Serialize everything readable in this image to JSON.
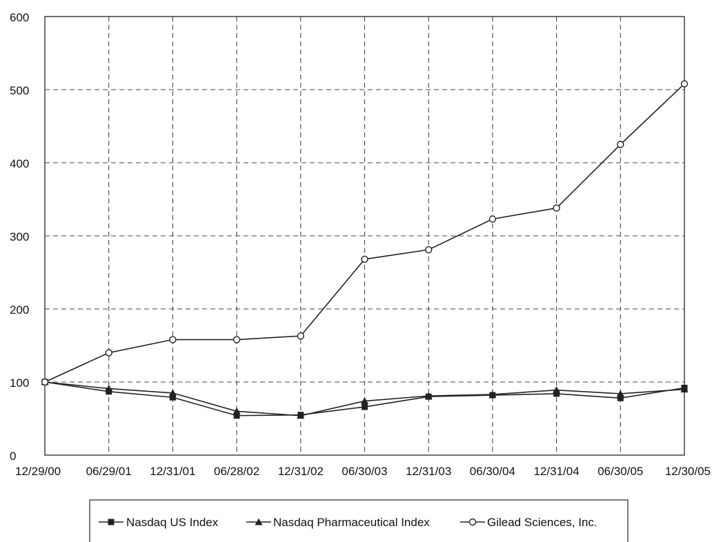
{
  "chart_data": {
    "type": "line",
    "categories": [
      "12/29/00",
      "06/29/01",
      "12/31/01",
      "06/28/02",
      "12/31/02",
      "06/30/03",
      "12/31/03",
      "06/30/04",
      "12/31/04",
      "06/30/05",
      "12/30/05"
    ],
    "y_ticks": [
      "0",
      "100",
      "200",
      "300",
      "400",
      "500",
      "600"
    ],
    "ylim": [
      0,
      600
    ],
    "grid": true,
    "legend_position": "bottom",
    "series": [
      {
        "name": "Nasdaq US Index",
        "marker": "square",
        "values": [
          100,
          87,
          79,
          54,
          55,
          66,
          80,
          82,
          84,
          78,
          92
        ]
      },
      {
        "name": "Nasdaq Pharmaceutical Index",
        "marker": "triangle",
        "values": [
          100,
          91,
          85,
          60,
          54,
          74,
          81,
          83,
          89,
          84,
          90
        ]
      },
      {
        "name": "Gilead Sciences, Inc.",
        "marker": "open-circle",
        "values": [
          100,
          140,
          158,
          158,
          163,
          268,
          281,
          323,
          338,
          425,
          508
        ]
      }
    ],
    "colors": {
      "line": "#222222",
      "grid": "#444444",
      "axis": "#222222"
    }
  }
}
